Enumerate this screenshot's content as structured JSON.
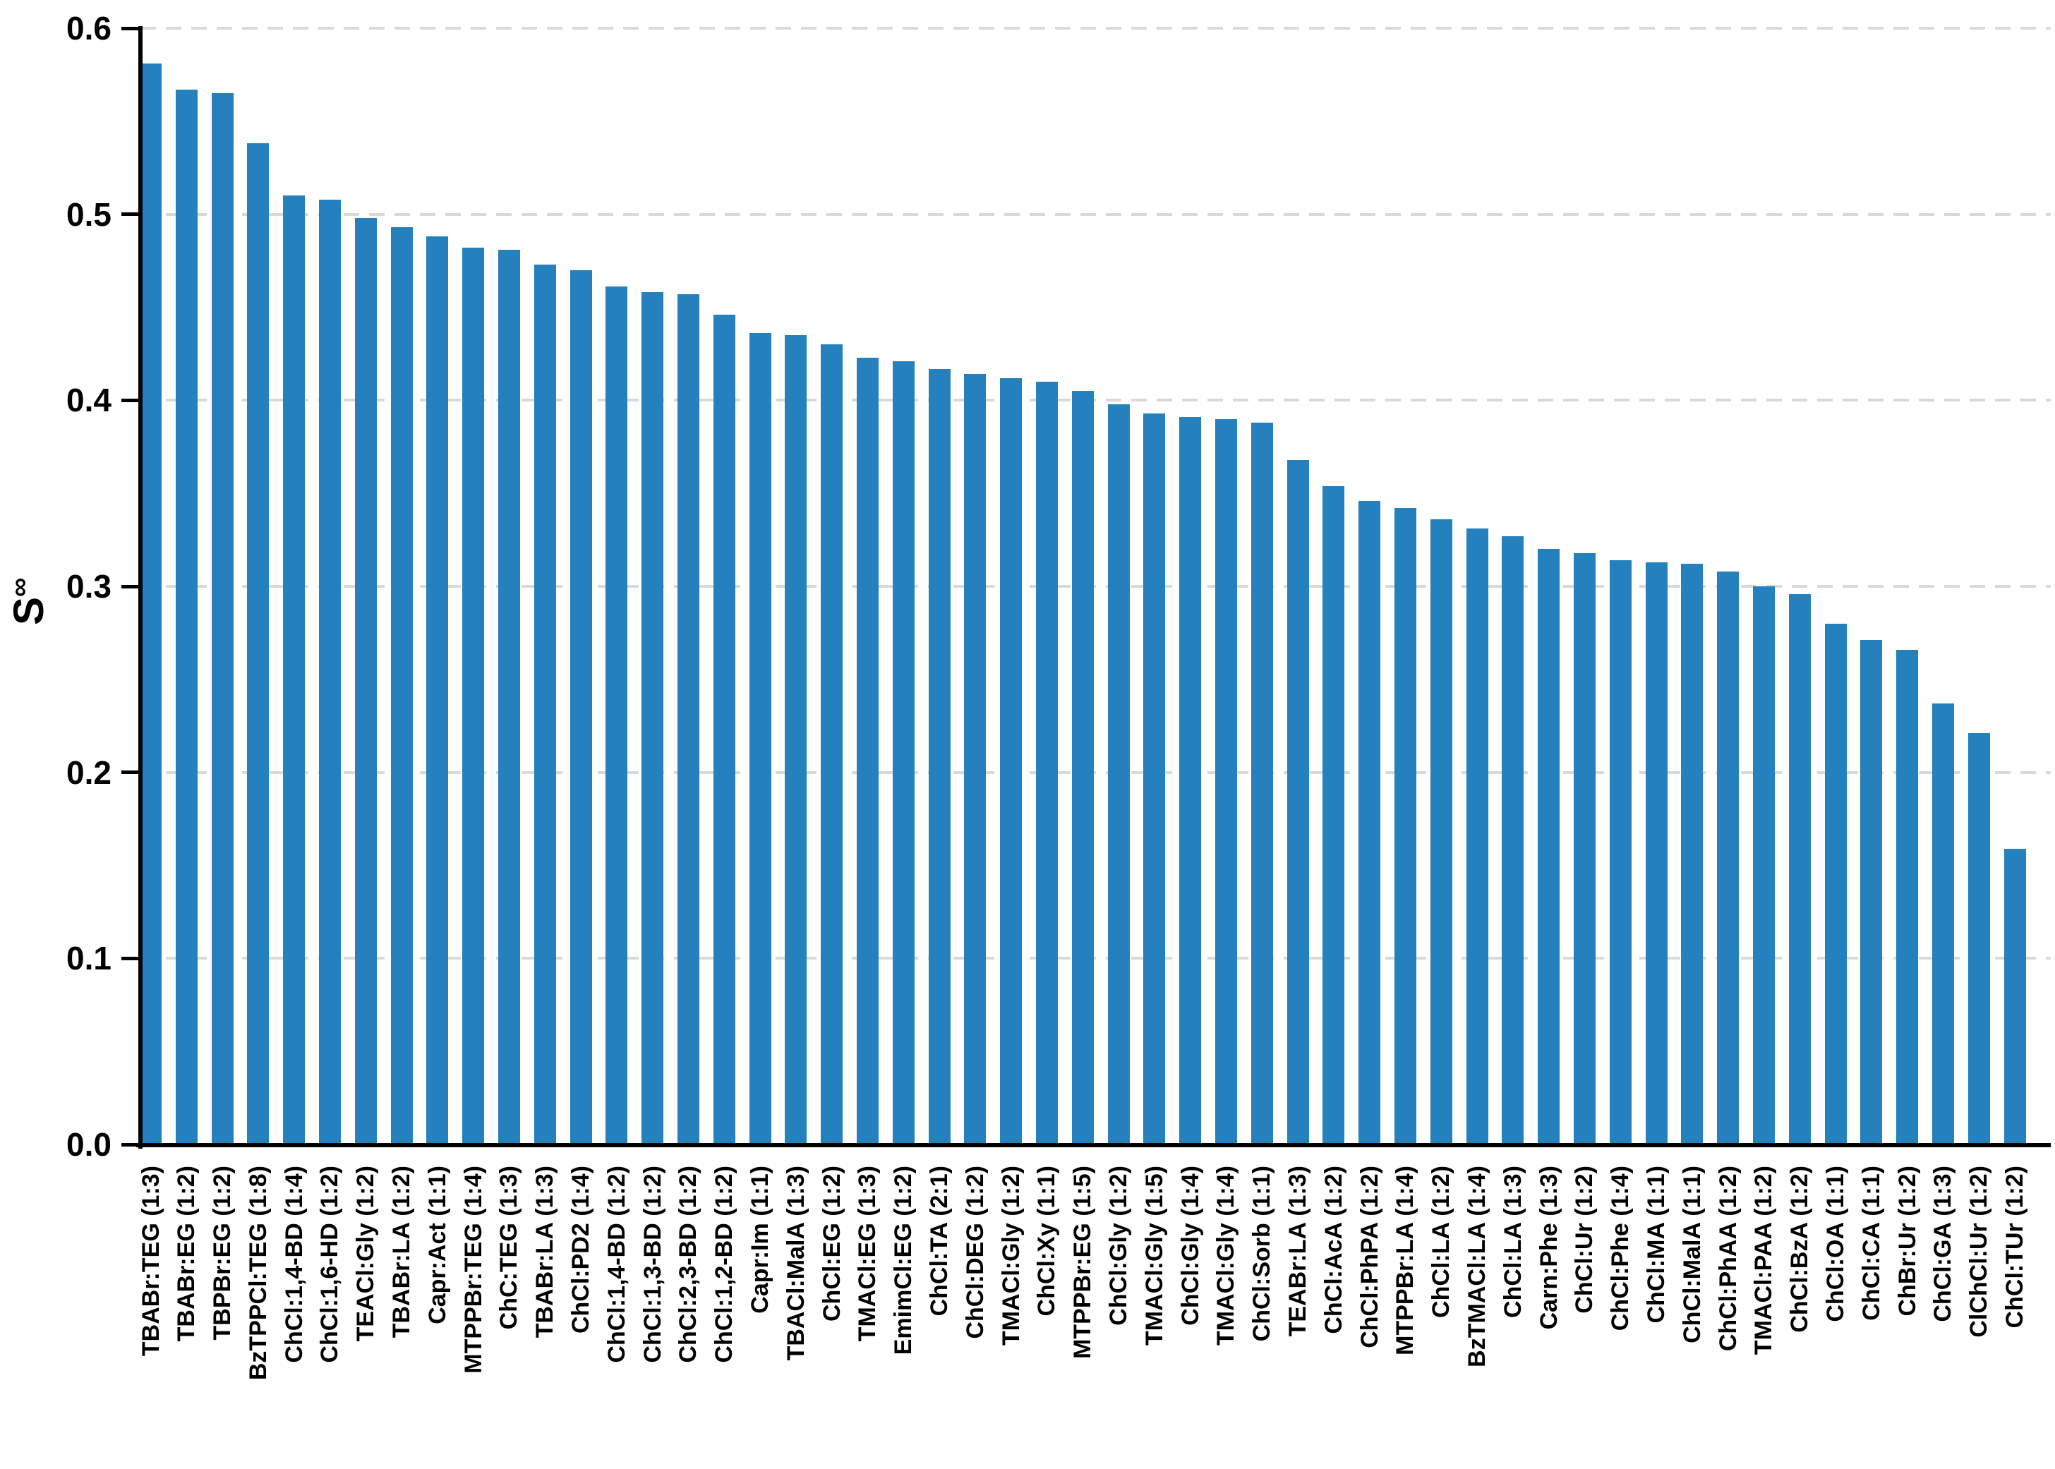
{
  "chart_data": {
    "type": "bar",
    "title": "",
    "ylabel_base": "S",
    "ylabel_superscript": "∞",
    "xlabel": "",
    "ylim": [
      0.0,
      0.6
    ],
    "yticks": [
      "0.0",
      "0.1",
      "0.2",
      "0.3",
      "0.4",
      "0.5",
      "0.6"
    ],
    "grid": "horizontal dashed",
    "legend_position": "none",
    "bar_color": "#2481bd",
    "grid_color": "#d9d9d9",
    "axis_color": "#000000",
    "categories": [
      "TBABr:TEG (1:3)",
      "TBABr:EG (1:2)",
      "TBPBr:EG (1:2)",
      "BzTPPCl:TEG (1:8)",
      "ChCl:1,4-BD (1:4)",
      "ChCl:1,6-HD (1:2)",
      "TEACl:Gly (1:2)",
      "TBABr:LA (1:2)",
      "Capr:Act (1:1)",
      "MTPPBr:TEG (1:4)",
      "ChC:TEG (1:3)",
      "TBABr:LA (1:3)",
      "ChCl:PD2 (1:4)",
      "ChCl:1,4-BD (1:2)",
      "ChCl:1,3-BD (1:2)",
      "ChCl:2,3-BD (1:2)",
      "ChCl:1,2-BD (1:2)",
      "Capr:Im (1:1)",
      "TBACl:MalA (1:3)",
      "ChCl:EG (1:2)",
      "TMACl:EG (1:3)",
      "EmimCl:EG (1:2)",
      "ChCl:TA (2:1)",
      "ChCl:DEG (1:2)",
      "TMACl:Gly (1:2)",
      "ChCl:Xy (1:1)",
      "MTPPBr:EG (1:5)",
      "ChCl:Gly (1:2)",
      "TMACl:Gly (1:5)",
      "ChCl:Gly (1:4)",
      "TMACl:Gly (1:4)",
      "ChCl:Sorb (1:1)",
      "TEABr:LA (1:3)",
      "ChCl:AcA (1:2)",
      "ChCl:PhPA (1:2)",
      "MTPPBr:LA (1:4)",
      "ChCl:LA (1:2)",
      "BzTMACl:LA (1:4)",
      "ChCl:LA (1:3)",
      "Carn:Phe (1:3)",
      "ChCl:Ur (1:2)",
      "ChCl:Phe (1:4)",
      "ChCl:MA (1:1)",
      "ChCl:MalA (1:1)",
      "ChCl:PhAA (1:2)",
      "TMACl:PAA (1:2)",
      "ChCl:BzA (1:2)",
      "ChCl:OA (1:1)",
      "ChCl:CA (1:1)",
      "ChBr:Ur (1:2)",
      "ChCl:GA (1:3)",
      "ClChCl:Ur (1:2)",
      "ChCl:TUr (1:2)"
    ],
    "values": [
      0.581,
      0.567,
      0.565,
      0.538,
      0.51,
      0.508,
      0.498,
      0.493,
      0.488,
      0.482,
      0.481,
      0.473,
      0.47,
      0.461,
      0.458,
      0.457,
      0.446,
      0.436,
      0.435,
      0.43,
      0.423,
      0.421,
      0.417,
      0.414,
      0.412,
      0.41,
      0.405,
      0.398,
      0.393,
      0.391,
      0.39,
      0.388,
      0.368,
      0.354,
      0.346,
      0.342,
      0.336,
      0.331,
      0.327,
      0.32,
      0.318,
      0.314,
      0.313,
      0.312,
      0.308,
      0.3,
      0.296,
      0.28,
      0.271,
      0.266,
      0.237,
      0.221,
      0.159
    ]
  }
}
